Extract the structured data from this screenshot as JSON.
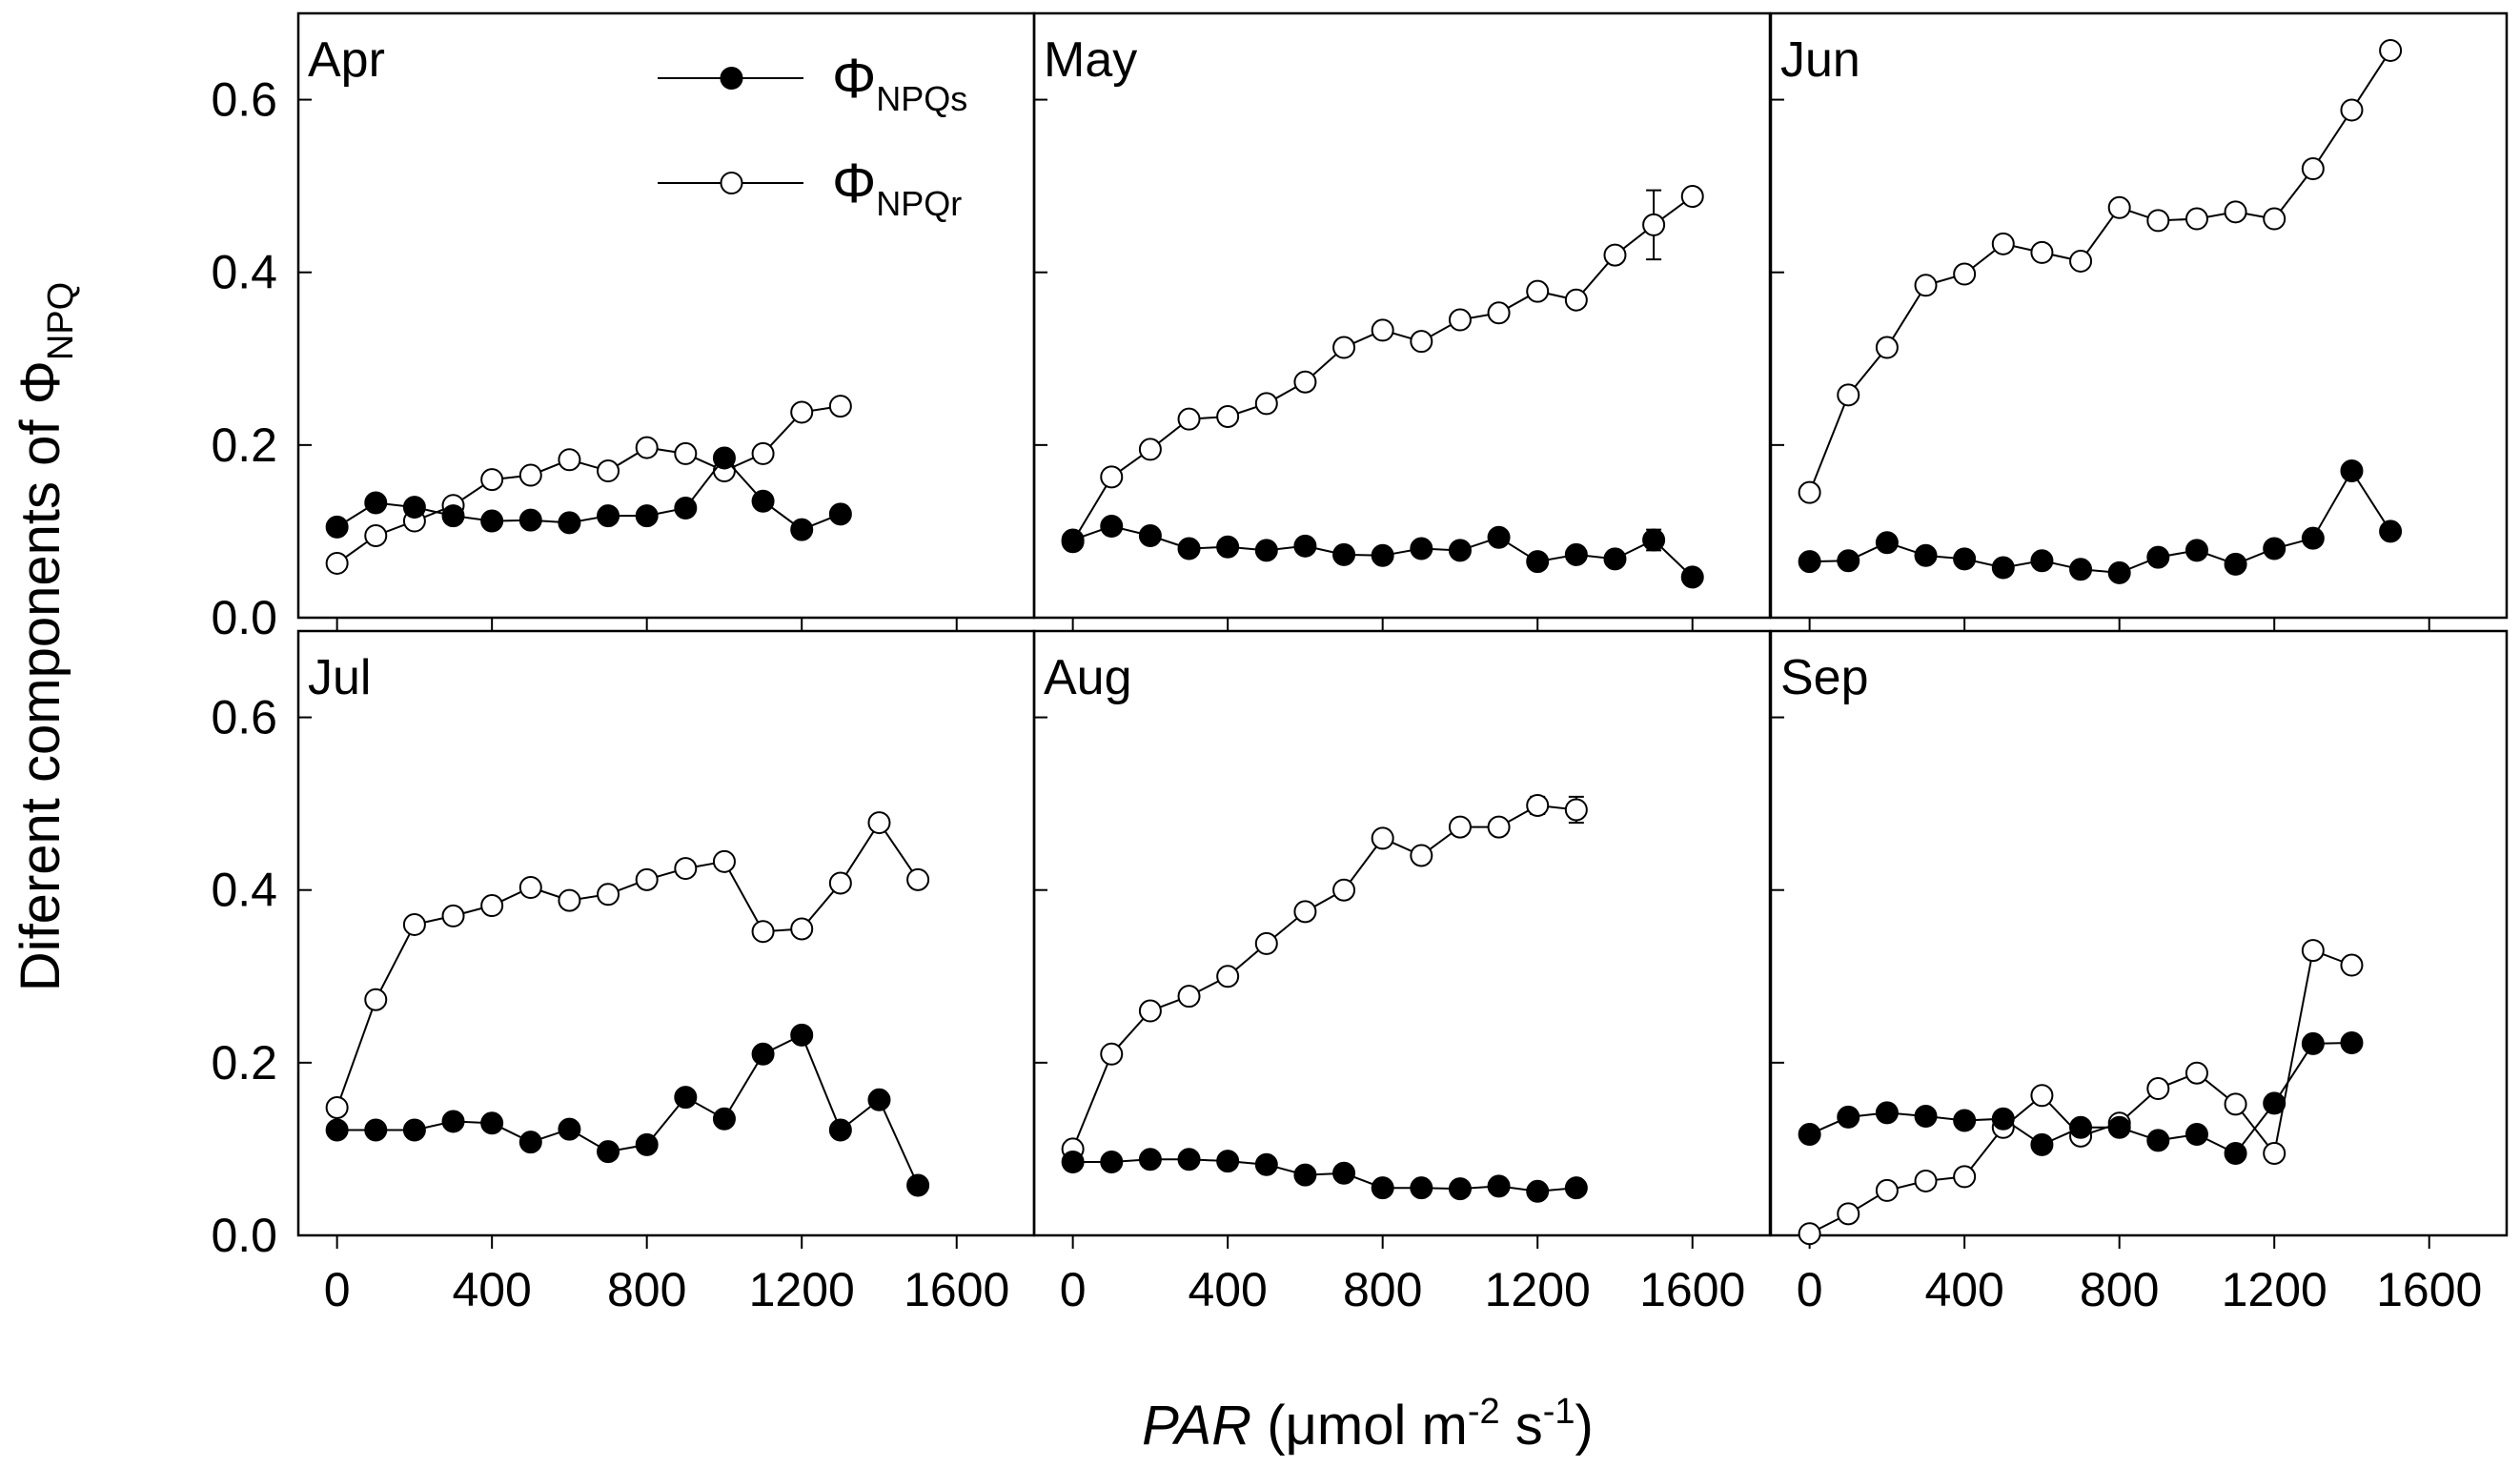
{
  "chart_data": {
    "type": "line",
    "title": "",
    "xlabel": "PAR (μmol m-2 s-1)",
    "xlabel_parts": {
      "italic": "PAR",
      "rest": " (μmol m",
      "sup1": "-2",
      "mid": " s",
      "sup2": "-1",
      "end": ")"
    },
    "ylabel": "Diferent components of ΦNPQ",
    "ylabel_parts": {
      "main": "Diferent components of Φ",
      "sub": "NPQ"
    },
    "xlim": [
      -100,
      1800
    ],
    "ylim": [
      0,
      0.7
    ],
    "xticks": [
      0,
      400,
      800,
      1200,
      1600
    ],
    "xtick_labels": [
      "0",
      "400",
      "800",
      "1200",
      "1600"
    ],
    "yticks": [
      0.0,
      0.2,
      0.4,
      0.6
    ],
    "ytick_labels": [
      "0.0",
      "0.2",
      "0.4",
      "0.6"
    ],
    "legend": {
      "placement": "top-center of first panel",
      "entries": [
        {
          "key": "npqs",
          "symbol": "Φ",
          "sub": "NPQs",
          "marker": "filled-circle"
        },
        {
          "key": "npqr",
          "symbol": "Φ",
          "sub": "NPQr",
          "marker": "open-circle"
        }
      ]
    },
    "panels": [
      {
        "label": "Apr",
        "x": [
          0,
          100,
          200,
          300,
          400,
          500,
          600,
          700,
          800,
          900,
          1000,
          1100,
          1200,
          1300
        ],
        "series": [
          {
            "name": "ΦNPQs",
            "values": [
              0.105,
              0.133,
              0.128,
              0.118,
              0.112,
              0.113,
              0.11,
              0.118,
              0.118,
              0.127,
              0.185,
              0.135,
              0.102,
              0.12
            ]
          },
          {
            "name": "ΦNPQr",
            "values": [
              0.063,
              0.095,
              0.112,
              0.13,
              0.16,
              0.165,
              0.183,
              0.17,
              0.197,
              0.19,
              0.17,
              0.19,
              0.238,
              0.245
            ]
          }
        ]
      },
      {
        "label": "May",
        "x": [
          0,
          100,
          200,
          300,
          400,
          500,
          600,
          700,
          800,
          900,
          1000,
          1100,
          1200,
          1300,
          1400,
          1500,
          1600
        ],
        "series": [
          {
            "name": "ΦNPQs",
            "values": [
              0.09,
              0.106,
              0.095,
              0.08,
              0.082,
              0.078,
              0.083,
              0.073,
              0.072,
              0.08,
              0.078,
              0.093,
              0.065,
              0.073,
              0.068,
              0.09,
              0.047
            ],
            "err": {
              "15": 0.012
            }
          },
          {
            "name": "ΦNPQr",
            "values": [
              0.088,
              0.163,
              0.195,
              0.23,
              0.233,
              0.248,
              0.273,
              0.313,
              0.333,
              0.32,
              0.345,
              0.353,
              0.378,
              0.368,
              0.42,
              0.455,
              0.488
            ],
            "err": {
              "15": 0.04
            }
          }
        ]
      },
      {
        "label": "Jun",
        "x": [
          0,
          100,
          200,
          300,
          400,
          500,
          600,
          700,
          800,
          900,
          1000,
          1100,
          1200,
          1300,
          1400,
          1500
        ],
        "series": [
          {
            "name": "ΦNPQs",
            "values": [
              0.065,
              0.066,
              0.087,
              0.072,
              0.068,
              0.058,
              0.066,
              0.056,
              0.052,
              0.07,
              0.078,
              0.062,
              0.08,
              0.092,
              0.17,
              0.1
            ]
          },
          {
            "name": "ΦNPQr",
            "values": [
              0.145,
              0.258,
              0.313,
              0.385,
              0.398,
              0.433,
              0.423,
              0.413,
              0.475,
              0.46,
              0.462,
              0.47,
              0.462,
              0.52,
              0.588,
              0.657
            ]
          }
        ]
      },
      {
        "label": "Jul",
        "x": [
          0,
          100,
          200,
          300,
          400,
          500,
          600,
          700,
          800,
          900,
          1000,
          1100,
          1200,
          1300,
          1400,
          1500
        ],
        "series": [
          {
            "name": "ΦNPQs",
            "values": [
              0.122,
              0.122,
              0.122,
              0.132,
              0.13,
              0.108,
              0.123,
              0.097,
              0.105,
              0.16,
              0.135,
              0.21,
              0.232,
              0.122,
              0.157,
              0.058
            ]
          },
          {
            "name": "ΦNPQr",
            "values": [
              0.148,
              0.273,
              0.36,
              0.37,
              0.382,
              0.403,
              0.388,
              0.395,
              0.412,
              0.425,
              0.433,
              0.352,
              0.355,
              0.408,
              0.478,
              0.412
            ]
          }
        ]
      },
      {
        "label": "Aug",
        "x": [
          0,
          100,
          200,
          300,
          400,
          500,
          600,
          700,
          800,
          900,
          1000,
          1100,
          1200,
          1300
        ],
        "series": [
          {
            "name": "ΦNPQs",
            "values": [
              0.085,
              0.085,
              0.088,
              0.088,
              0.086,
              0.082,
              0.07,
              0.072,
              0.055,
              0.055,
              0.054,
              0.057,
              0.051,
              0.055
            ]
          },
          {
            "name": "ΦNPQr",
            "values": [
              0.1,
              0.21,
              0.26,
              0.277,
              0.3,
              0.338,
              0.375,
              0.4,
              0.46,
              0.44,
              0.473,
              0.473,
              0.498,
              0.493
            ],
            "err": {
              "12": 0.01,
              "13": 0.015
            }
          }
        ]
      },
      {
        "label": "Sep",
        "x": [
          0,
          100,
          200,
          300,
          400,
          500,
          600,
          700,
          800,
          900,
          1000,
          1100,
          1200,
          1300,
          1400
        ],
        "series": [
          {
            "name": "ΦNPQs",
            "values": [
              0.117,
              0.137,
              0.142,
              0.138,
              0.133,
              0.135,
              0.105,
              0.125,
              0.125,
              0.11,
              0.117,
              0.095,
              0.153,
              0.222,
              0.223
            ]
          },
          {
            "name": "ΦNPQr",
            "values": [
              0.002,
              0.025,
              0.052,
              0.063,
              0.068,
              0.125,
              0.162,
              0.115,
              0.13,
              0.17,
              0.188,
              0.152,
              0.095,
              0.33,
              0.313
            ]
          }
        ]
      }
    ]
  }
}
